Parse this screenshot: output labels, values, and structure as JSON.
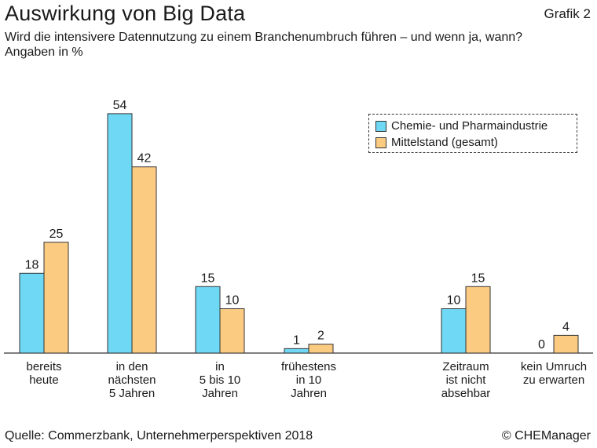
{
  "header": {
    "title": "Auswirkung von Big Data",
    "grafik": "Grafik 2",
    "subtitle_line1": "Wird die intensivere Datennutzung zu einem Branchenumbruch führen – und wenn ja, wann?",
    "subtitle_line2": "Angaben in %"
  },
  "footer": {
    "source": "Quelle: Commerzbank, Unternehmerperspektiven 2018",
    "copyright": "© CHEManager"
  },
  "colors": {
    "series1": "#6fd8f5",
    "series2": "#fbcb82",
    "outline": "#333333"
  },
  "chart_data": {
    "type": "bar",
    "categories": [
      "bereits\nheute",
      "in den\nnächsten\n5 Jahren",
      "in\n5 bis 10\nJahren",
      "frühestens\nin 10\nJahren",
      "Zeitraum\nist nicht\nabsehbar",
      "kein Umruch\nzu erwarten"
    ],
    "series": [
      {
        "name": "Chemie- und Pharmaindustrie",
        "values": [
          18,
          54,
          15,
          1,
          10,
          0
        ]
      },
      {
        "name": "Mittelstand (gesamt)",
        "values": [
          25,
          42,
          10,
          2,
          15,
          4
        ]
      }
    ],
    "ylim": [
      0,
      60
    ],
    "grid": false,
    "legend": "top-right"
  }
}
